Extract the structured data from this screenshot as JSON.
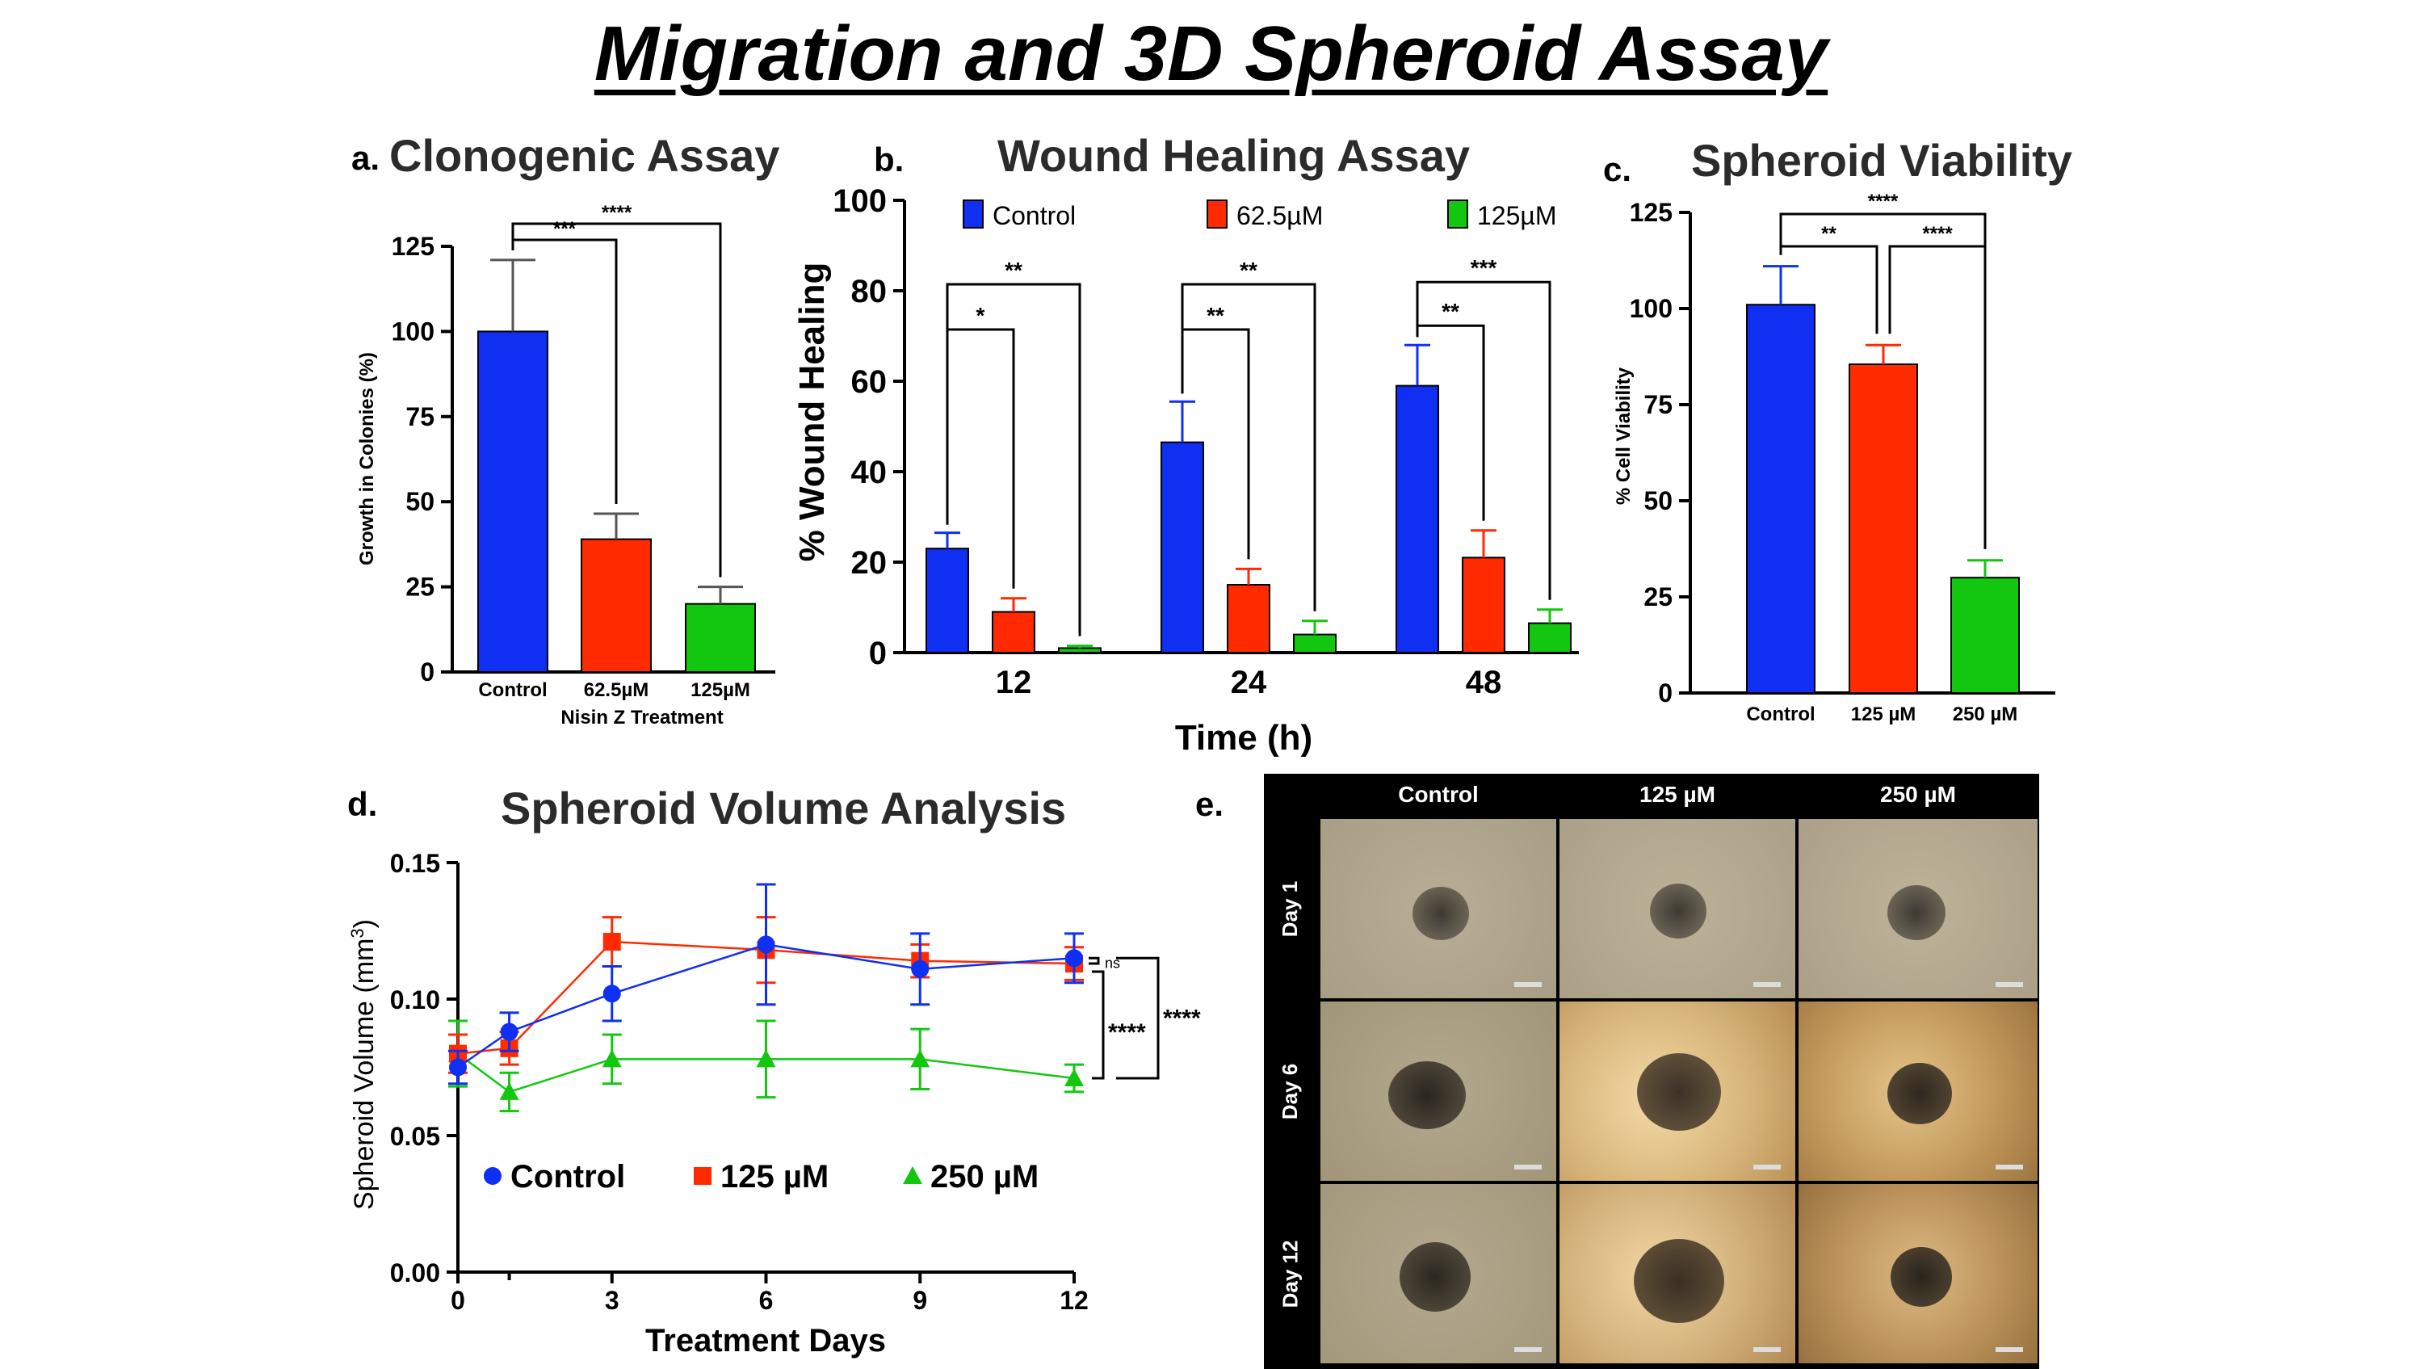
{
  "main_title": "Migration and 3D Spheroid Assay",
  "panels": {
    "a": {
      "letter": "a.",
      "title": "Clonogenic Assay"
    },
    "b": {
      "letter": "b.",
      "title": "Wound Healing Assay"
    },
    "c": {
      "letter": "c.",
      "title": "Spheroid Viability"
    },
    "d": {
      "letter": "d.",
      "title": "Spheroid Volume Analysis"
    },
    "e": {
      "letter": "e."
    }
  },
  "colors": {
    "control": "#0f2ff2",
    "mid": "#ff2a00",
    "high": "#13c711"
  },
  "chart_data": [
    {
      "id": "a",
      "type": "bar",
      "title": "Clonogenic Assay",
      "xlabel": "Nisin Z Treatment",
      "ylabel": "Growth in Colonies (%)",
      "categories": [
        "Control",
        "62.5µM",
        "125µM"
      ],
      "values": [
        100,
        39,
        20
      ],
      "errors": [
        21,
        7.5,
        5
      ],
      "ylim": [
        0,
        125
      ],
      "yticks": [
        "0",
        "25",
        "50",
        "75",
        "100",
        "125"
      ],
      "significance": [
        {
          "from": 0,
          "to": 1,
          "label": "***"
        },
        {
          "from": 0,
          "to": 2,
          "label": "****"
        }
      ]
    },
    {
      "id": "b",
      "type": "bar",
      "title": "Wound Healing Assay",
      "xlabel": "Time (h)",
      "ylabel": "% Wound Healing",
      "categories": [
        "12",
        "24",
        "48"
      ],
      "series": [
        {
          "name": "Control",
          "values": [
            23,
            46.5,
            59
          ],
          "errors": [
            3.5,
            9,
            9
          ]
        },
        {
          "name": "62.5µM",
          "values": [
            9,
            15,
            21
          ],
          "errors": [
            3,
            3.5,
            6
          ]
        },
        {
          "name": "125µM",
          "values": [
            1,
            4,
            6.5
          ],
          "errors": [
            0.5,
            3,
            3
          ]
        }
      ],
      "ylim": [
        0,
        100
      ],
      "yticks": [
        "0",
        "20",
        "40",
        "60",
        "80",
        "100"
      ],
      "legend": "top",
      "significance": [
        {
          "group": 0,
          "pairs": [
            {
              "to": 1,
              "label": "*"
            },
            {
              "to": 2,
              "label": "**"
            }
          ]
        },
        {
          "group": 1,
          "pairs": [
            {
              "to": 1,
              "label": "**"
            },
            {
              "to": 2,
              "label": "**"
            }
          ]
        },
        {
          "group": 2,
          "pairs": [
            {
              "to": 1,
              "label": "**"
            },
            {
              "to": 2,
              "label": "***"
            }
          ]
        }
      ]
    },
    {
      "id": "c",
      "type": "bar",
      "title": "Spheroid Viability",
      "xlabel": "",
      "ylabel": "% Cell Viability",
      "categories": [
        "Control",
        "125 µM",
        "250 µM"
      ],
      "values": [
        101,
        85.5,
        30
      ],
      "errors": [
        10,
        5,
        4.5
      ],
      "ylim": [
        0,
        125
      ],
      "yticks": [
        "0",
        "25",
        "50",
        "75",
        "100",
        "125"
      ],
      "significance": [
        {
          "from": 0,
          "to": 1,
          "label": "**"
        },
        {
          "from": 1,
          "to": 2,
          "label": "****"
        },
        {
          "from": 0,
          "to": 2,
          "label": "****"
        }
      ]
    },
    {
      "id": "d",
      "type": "line",
      "title": "Spheroid Volume Analysis",
      "xlabel": "Treatment Days",
      "ylabel": "Spheroid Volume (mm",
      "ylabel_sup": "3",
      "ylabel_end": ")",
      "x": [
        0,
        1,
        3,
        6,
        9,
        12
      ],
      "xticks": [
        "0",
        "3",
        "6",
        "9",
        "12"
      ],
      "yticks": [
        "0.00",
        "0.05",
        "0.10",
        "0.15"
      ],
      "xlim": [
        0,
        12
      ],
      "ylim": [
        0,
        0.15
      ],
      "series": [
        {
          "name": "Control",
          "marker": "circle",
          "values": [
            0.075,
            0.088,
            0.102,
            0.12,
            0.111,
            0.115
          ],
          "errors": [
            0.006,
            0.007,
            0.01,
            0.022,
            0.013,
            0.009
          ]
        },
        {
          "name": "125 µM",
          "marker": "square",
          "values": [
            0.08,
            0.082,
            0.121,
            0.118,
            0.114,
            0.113
          ],
          "errors": [
            0.007,
            0.006,
            0.009,
            0.012,
            0.006,
            0.006
          ]
        },
        {
          "name": "250 µM",
          "marker": "triangle",
          "values": [
            0.08,
            0.066,
            0.078,
            0.078,
            0.078,
            0.071
          ],
          "errors": [
            0.012,
            0.007,
            0.009,
            0.014,
            0.011,
            0.005
          ]
        }
      ],
      "significance": [
        {
          "label": "ns"
        },
        {
          "label": "****"
        },
        {
          "label": "****"
        }
      ]
    }
  ],
  "micrographs": {
    "columns": [
      "Control",
      "125 µM",
      "250 µM"
    ],
    "rows": [
      "Day 1",
      "Day 6",
      "Day 12"
    ]
  }
}
